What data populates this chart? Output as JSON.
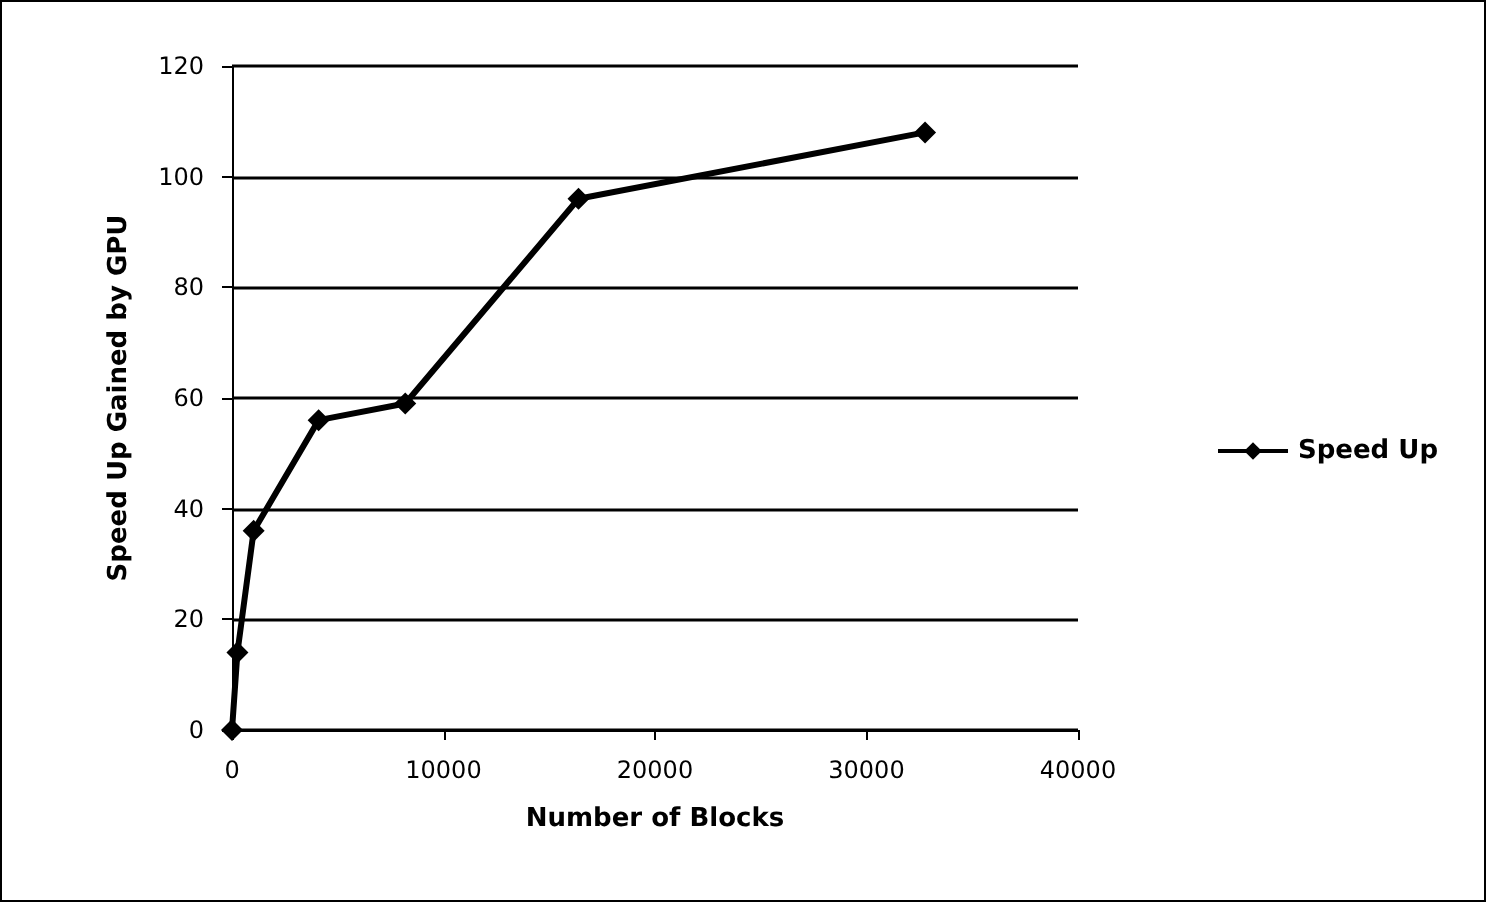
{
  "chart_data": {
    "type": "line",
    "xlabel": "Number of Blocks",
    "ylabel": "Speed Up Gained by GPU",
    "x": [
      0,
      256,
      1024,
      4096,
      8192,
      16384,
      32768
    ],
    "series": [
      {
        "name": "Speed Up",
        "color": "#000000",
        "values": [
          0,
          14,
          36,
          56,
          59,
          96,
          108
        ]
      }
    ],
    "xlim": [
      0,
      40000
    ],
    "xticks": [
      0,
      10000,
      20000,
      30000,
      40000
    ],
    "ylim": [
      0,
      120
    ],
    "yticks": [
      0,
      20,
      40,
      60,
      80,
      100,
      120
    ],
    "grid": "y",
    "legend": "right",
    "marker": "diamond",
    "line_style": "solid"
  }
}
